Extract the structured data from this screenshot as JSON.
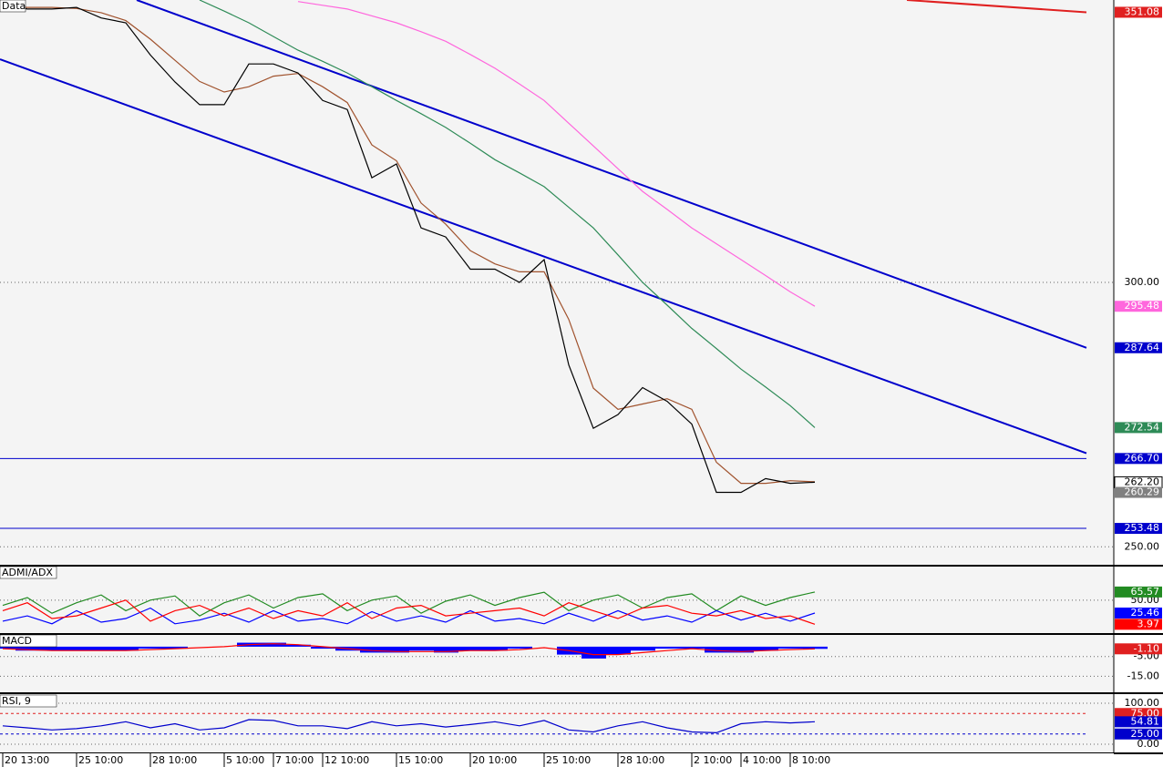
{
  "chart_data": [
    {
      "type": "line",
      "title": "Data",
      "categories": [
        "20 13:00",
        null,
        null,
        "25 10:00",
        null,
        null,
        "28 10:00",
        null,
        null,
        "5 10:00",
        null,
        "7 10:00",
        null,
        "12 10:00",
        null,
        null,
        "15 10:00",
        null,
        null,
        "20 10:00",
        null,
        null,
        "25 10:00",
        null,
        null,
        "28 10:00",
        null,
        null,
        "2 10:00",
        null,
        "4 10:00",
        null,
        "8 10:00",
        null
      ],
      "ylim": [
        246.6,
        353.4
      ],
      "yticks": [
        {
          "value": 300,
          "label": "300.00"
        },
        {
          "value": 250,
          "label": "250.00"
        }
      ],
      "series": [
        {
          "color": "#ff66dd",
          "values": [
            null,
            null,
            null,
            null,
            null,
            null,
            null,
            null,
            null,
            null,
            null,
            null,
            353.1,
            352.4,
            351.7,
            350.4,
            349.1,
            347.4,
            345.6,
            343.1,
            340.5,
            337.5,
            334.4,
            330.1,
            325.8,
            321.5,
            317.2,
            313.8,
            310.3,
            307.3,
            304.3,
            301.3,
            298.2,
            295.48
          ]
        },
        {
          "color": "#2e8b57",
          "values": [
            null,
            null,
            null,
            null,
            null,
            null,
            null,
            null,
            353.4,
            351.3,
            349.1,
            346.5,
            343.9,
            341.8,
            339.6,
            337,
            334.4,
            331.9,
            329.3,
            326.3,
            323.2,
            320.7,
            318.1,
            314.2,
            310.3,
            305.2,
            300,
            295.7,
            291.3,
            287.5,
            283.6,
            280.2,
            276.7,
            272.54
          ]
        },
        {
          "color": "#a0522d",
          "values": [
            352,
            352,
            352,
            351.8,
            351,
            349.5,
            346,
            342,
            338,
            336,
            337,
            339,
            339.5,
            337,
            334,
            326,
            323,
            315,
            311,
            306,
            303.5,
            302,
            302,
            293,
            280,
            276,
            277,
            278,
            276,
            266,
            262,
            262,
            262.5,
            262.3
          ]
        },
        {
          "color": "#000000",
          "values": [
            352.5,
            351.7,
            351.7,
            352,
            350,
            349.1,
            343,
            337.9,
            333.6,
            333.6,
            341.3,
            341.3,
            339.6,
            334.4,
            332.7,
            319.8,
            322.4,
            310.3,
            308.6,
            302.5,
            302.5,
            300,
            304.3,
            284.4,
            272.4,
            275,
            280.1,
            277.5,
            273.2,
            260.3,
            260.3,
            262.9,
            262,
            262.2
          ]
        }
      ],
      "trendlines": [
        {
          "color": "#0000cc",
          "values": [
            353.4,
            287.64
          ]
        },
        {
          "color": "#0000cc",
          "values": [
            342.2,
            267.7
          ]
        },
        {
          "color": "#e02020",
          "values": [
            353.4,
            351.08
          ]
        }
      ],
      "levels": [
        {
          "value": 266.7,
          "color": "#0000cc"
        },
        {
          "value": 253.48,
          "color": "#0000cc"
        }
      ],
      "markers": [
        {
          "value": 351.08,
          "label": "351.08",
          "color": "#e02020"
        },
        {
          "value": 295.48,
          "label": "295.48",
          "color": "#ff66dd"
        },
        {
          "value": 287.64,
          "label": "287.64",
          "color": "#0000cc"
        },
        {
          "value": 272.54,
          "label": "272.54",
          "color": "#2e8b57"
        },
        {
          "value": 266.7,
          "label": "266.70",
          "color": "#0000cc"
        },
        {
          "value": 262.2,
          "label": "262.20",
          "color": "#ffffff"
        },
        {
          "value": 260.29,
          "label": "260.29",
          "color": "#808080"
        },
        {
          "value": 253.48,
          "label": "253.48",
          "color": "#0000cc"
        }
      ]
    },
    {
      "type": "line",
      "title": "ADMI/ADX",
      "ylim": [
        -12.8,
        114
      ],
      "yticks": [
        {
          "value": 50,
          "label": "50.00"
        }
      ],
      "series": [
        {
          "color": "#228b22",
          "values": [
            40,
            55,
            25,
            45,
            60,
            30,
            50,
            58,
            20,
            45,
            60,
            35,
            55,
            62,
            30,
            50,
            58,
            25,
            48,
            60,
            40,
            55,
            65,
            30,
            50,
            60,
            35,
            55,
            62,
            30,
            58,
            40,
            55,
            65.57
          ]
        },
        {
          "color": "#0000ff",
          "values": [
            10,
            20,
            5,
            30,
            8,
            15,
            35,
            5,
            12,
            25,
            8,
            30,
            10,
            15,
            5,
            28,
            10,
            20,
            8,
            30,
            10,
            15,
            5,
            25,
            10,
            30,
            12,
            20,
            8,
            30,
            12,
            25,
            10,
            25.46
          ]
        },
        {
          "color": "#ff0000",
          "values": [
            30,
            45,
            15,
            20,
            35,
            50,
            10,
            30,
            40,
            20,
            35,
            15,
            30,
            20,
            45,
            15,
            35,
            40,
            20,
            25,
            30,
            35,
            20,
            45,
            30,
            15,
            35,
            40,
            25,
            20,
            30,
            15,
            20,
            3.97
          ]
        }
      ],
      "markers": [
        {
          "value": 65.57,
          "label": "65.57",
          "color": "#228b22"
        },
        {
          "value": 25.46,
          "label": "25.46",
          "color": "#0000ff"
        },
        {
          "value": 3.97,
          "label": "3.97",
          "color": "#ff0000"
        }
      ]
    },
    {
      "type": "histogram",
      "title": "MACD",
      "ylim": [
        -23.1,
        5.95
      ],
      "yticks": [
        {
          "value": -5,
          "label": "-5.00"
        },
        {
          "value": -15,
          "label": "-15.00"
        }
      ],
      "series": [
        {
          "color": "#0000ff",
          "style": "histogram",
          "values": [
            -1,
            -2,
            -2,
            -2,
            -2,
            -2,
            -1,
            -1,
            0,
            0,
            2,
            2,
            1,
            -1,
            -2,
            -3,
            -3,
            -2,
            -3,
            -2,
            -2,
            -1,
            0,
            -4,
            -6,
            -4,
            -2,
            -1,
            -1,
            -3,
            -3,
            -2,
            -1,
            -1.1
          ]
        },
        {
          "color": "#ff0000",
          "values": [
            -1,
            -1.5,
            -2,
            -2,
            -2,
            -2,
            -1.5,
            -1,
            -0.5,
            0,
            1,
            1.5,
            1,
            0,
            -1,
            -2,
            -2.5,
            -2.5,
            -2.5,
            -2,
            -2,
            -1.5,
            -0.5,
            -2,
            -4,
            -4,
            -3,
            -2,
            -1,
            -2,
            -2.5,
            -2,
            -1.5,
            -1.1
          ]
        }
      ],
      "markers": [
        {
          "value": -1.1,
          "label": "-1.10",
          "color": "#e02020"
        }
      ]
    },
    {
      "type": "line",
      "title": "RSI, 9",
      "ylim": [
        -20,
        120
      ],
      "yticks": [
        {
          "value": 100,
          "label": "100.00"
        },
        {
          "value": 0,
          "label": "0.00"
        }
      ],
      "series": [
        {
          "color": "#0000cc",
          "values": [
            45,
            40,
            35,
            38,
            45,
            55,
            40,
            50,
            35,
            40,
            60,
            58,
            45,
            45,
            38,
            55,
            45,
            50,
            42,
            48,
            55,
            45,
            58,
            35,
            30,
            45,
            55,
            40,
            30,
            28,
            50,
            55,
            52,
            54.81
          ]
        }
      ],
      "levels": [
        {
          "value": 75,
          "color": "#e02020"
        },
        {
          "value": 25,
          "color": "#0000cc"
        }
      ],
      "markers": [
        {
          "value": 75,
          "label": "75.00",
          "color": "#e02020"
        },
        {
          "value": 54.81,
          "label": "54.81",
          "color": "#0000cc"
        },
        {
          "value": 25,
          "label": "25.00",
          "color": "#0000cc"
        }
      ]
    }
  ]
}
